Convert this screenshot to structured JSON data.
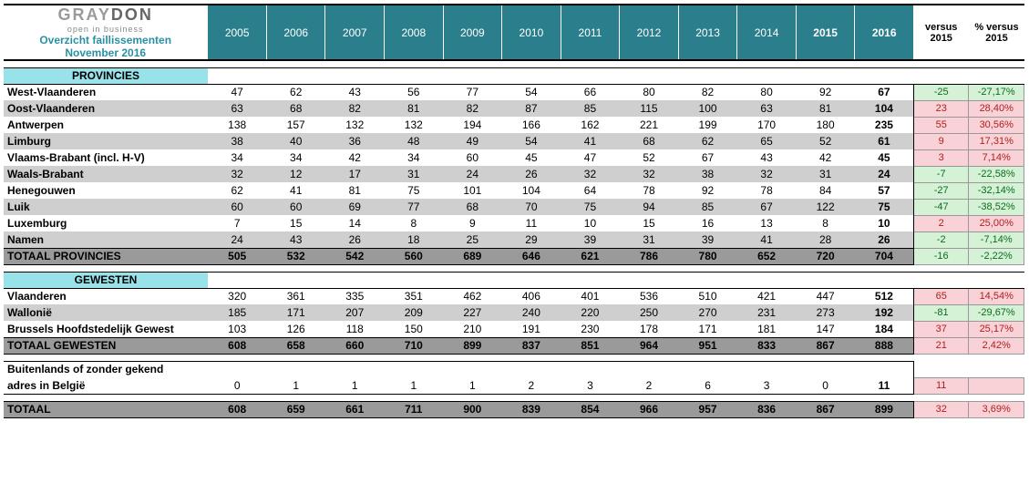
{
  "header": {
    "brand_gray": "GRAY",
    "brand_dark": "DON",
    "tagline": "open in business",
    "subtitle1": "Overzicht faillissementen",
    "subtitle2": "November 2016",
    "years": [
      "2005",
      "2006",
      "2007",
      "2008",
      "2009",
      "2010",
      "2011",
      "2012",
      "2013",
      "2014"
    ],
    "years_bold": [
      "2015",
      "2016"
    ],
    "versus1": "versus 2015",
    "versus2": "% versus 2015"
  },
  "sections": {
    "provincies_title": "PROVINCIES",
    "gewesten_title": "GEWESTEN"
  },
  "prov_rows": [
    {
      "label": "West-Vlaanderen",
      "v": [
        "47",
        "62",
        "43",
        "56",
        "77",
        "54",
        "66",
        "80",
        "82",
        "80",
        "92",
        "67"
      ],
      "d": "-25",
      "p": "-27,17%",
      "dir": "neg"
    },
    {
      "label": "Oost-Vlaanderen",
      "v": [
        "63",
        "68",
        "82",
        "81",
        "82",
        "87",
        "85",
        "115",
        "100",
        "63",
        "81",
        "104"
      ],
      "d": "23",
      "p": "28,40%",
      "dir": "pos"
    },
    {
      "label": "Antwerpen",
      "v": [
        "138",
        "157",
        "132",
        "132",
        "194",
        "166",
        "162",
        "221",
        "199",
        "170",
        "180",
        "235"
      ],
      "d": "55",
      "p": "30,56%",
      "dir": "pos"
    },
    {
      "label": "Limburg",
      "v": [
        "38",
        "40",
        "36",
        "48",
        "49",
        "54",
        "41",
        "68",
        "62",
        "65",
        "52",
        "61"
      ],
      "d": "9",
      "p": "17,31%",
      "dir": "pos"
    },
    {
      "label": "Vlaams-Brabant (incl. H-V)",
      "v": [
        "34",
        "34",
        "42",
        "34",
        "60",
        "45",
        "47",
        "52",
        "67",
        "43",
        "42",
        "45"
      ],
      "d": "3",
      "p": "7,14%",
      "dir": "pos"
    },
    {
      "label": "Waals-Brabant",
      "v": [
        "32",
        "12",
        "17",
        "31",
        "24",
        "26",
        "32",
        "32",
        "38",
        "32",
        "31",
        "24"
      ],
      "d": "-7",
      "p": "-22,58%",
      "dir": "neg"
    },
    {
      "label": "Henegouwen",
      "v": [
        "62",
        "41",
        "81",
        "75",
        "101",
        "104",
        "64",
        "78",
        "92",
        "78",
        "84",
        "57"
      ],
      "d": "-27",
      "p": "-32,14%",
      "dir": "neg"
    },
    {
      "label": "Luik",
      "v": [
        "60",
        "60",
        "69",
        "77",
        "68",
        "70",
        "75",
        "94",
        "85",
        "67",
        "122",
        "75"
      ],
      "d": "-47",
      "p": "-38,52%",
      "dir": "neg"
    },
    {
      "label": "Luxemburg",
      "v": [
        "7",
        "15",
        "14",
        "8",
        "9",
        "11",
        "10",
        "15",
        "16",
        "13",
        "8",
        "10"
      ],
      "d": "2",
      "p": "25,00%",
      "dir": "pos"
    },
    {
      "label": "Namen",
      "v": [
        "24",
        "43",
        "26",
        "18",
        "25",
        "29",
        "39",
        "31",
        "39",
        "41",
        "28",
        "26"
      ],
      "d": "-2",
      "p": "-7,14%",
      "dir": "neg"
    }
  ],
  "prov_total": {
    "label": "TOTAAL PROVINCIES",
    "v": [
      "505",
      "532",
      "542",
      "560",
      "689",
      "646",
      "621",
      "786",
      "780",
      "652",
      "720",
      "704"
    ],
    "d": "-16",
    "p": "-2,22%",
    "dir": "neg"
  },
  "gew_rows": [
    {
      "label": "Vlaanderen",
      "v": [
        "320",
        "361",
        "335",
        "351",
        "462",
        "406",
        "401",
        "536",
        "510",
        "421",
        "447",
        "512"
      ],
      "d": "65",
      "p": "14,54%",
      "dir": "pos"
    },
    {
      "label": "Wallonië",
      "v": [
        "185",
        "171",
        "207",
        "209",
        "227",
        "240",
        "220",
        "250",
        "270",
        "231",
        "273",
        "192"
      ],
      "d": "-81",
      "p": "-29,67%",
      "dir": "neg"
    },
    {
      "label": "Brussels Hoofdstedelijk Gewest",
      "v": [
        "103",
        "126",
        "118",
        "150",
        "210",
        "191",
        "230",
        "178",
        "171",
        "181",
        "147",
        "184"
      ],
      "d": "37",
      "p": "25,17%",
      "dir": "pos"
    }
  ],
  "gew_total": {
    "label": "TOTAAL GEWESTEN",
    "v": [
      "608",
      "658",
      "660",
      "710",
      "899",
      "837",
      "851",
      "964",
      "951",
      "833",
      "867",
      "888"
    ],
    "d": "21",
    "p": "2,42%",
    "dir": "pos"
  },
  "foreign": {
    "label1": "Buitenlands of zonder gekend",
    "label2": "adres in België",
    "v": [
      "0",
      "1",
      "1",
      "1",
      "1",
      "2",
      "3",
      "2",
      "6",
      "3",
      "0",
      "11"
    ],
    "d": "11",
    "p": "",
    "dir": "pos"
  },
  "grand_total": {
    "label": "TOTAAL",
    "v": [
      "608",
      "659",
      "661",
      "711",
      "900",
      "839",
      "854",
      "966",
      "957",
      "836",
      "867",
      "899"
    ],
    "d": "32",
    "p": "3,69%",
    "dir": "pos"
  }
}
